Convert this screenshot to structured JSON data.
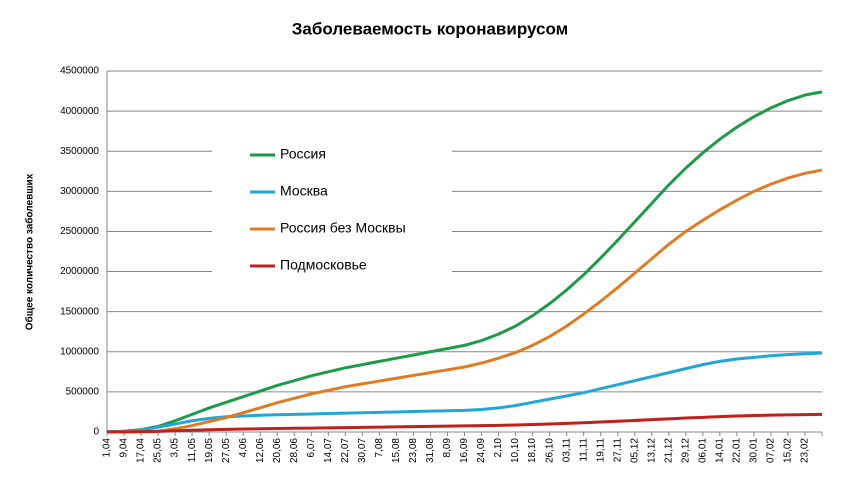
{
  "chart_data": {
    "type": "line",
    "title": "Заболеваемость коронавирусом",
    "y_label": "Общее количество заболевших",
    "categories": [
      "1,04",
      "9,04",
      "17,04",
      "25,05",
      "3,05",
      "11,05",
      "19,05",
      "27,05",
      "4,06",
      "12,06",
      "20,06",
      "28,06",
      "6,07",
      "14,07",
      "22,07",
      "30,07",
      "7,08",
      "15,08",
      "23,08",
      "31,08",
      "8,09",
      "16,09",
      "24,09",
      "2,10",
      "10,10",
      "18,10",
      "26,10",
      "03,11",
      "11,11",
      "19,11",
      "27,11",
      "05,12",
      "13,12",
      "21,12",
      "29,12",
      "06,01",
      "14,01",
      "22,01",
      "30,01",
      "07,02",
      "15,02",
      "23,02",
      null
    ],
    "series": [
      {
        "name": "Россия",
        "color": "#1f9a48",
        "values": [
          2000,
          10000,
          30000,
          70000,
          140000,
          220000,
          300000,
          370000,
          440000,
          510000,
          580000,
          640000,
          700000,
          750000,
          800000,
          840000,
          880000,
          920000,
          960000,
          1000000,
          1040000,
          1080000,
          1140000,
          1220000,
          1320000,
          1450000,
          1600000,
          1770000,
          1960000,
          2170000,
          2390000,
          2620000,
          2850000,
          3080000,
          3290000,
          3480000,
          3650000,
          3800000,
          3930000,
          4040000,
          4130000,
          4200000,
          4240000
        ]
      },
      {
        "name": "Москва",
        "color": "#22a6d6",
        "values": [
          1000,
          8000,
          25000,
          60000,
          100000,
          140000,
          170000,
          190000,
          200000,
          208000,
          215000,
          220000,
          225000,
          230000,
          235000,
          240000,
          245000,
          250000,
          255000,
          260000,
          265000,
          270000,
          280000,
          300000,
          330000,
          370000,
          410000,
          450000,
          490000,
          540000,
          590000,
          640000,
          690000,
          740000,
          790000,
          840000,
          880000,
          910000,
          930000,
          950000,
          965000,
          975000,
          985000
        ]
      },
      {
        "name": "Россия без Москвы",
        "color": "#e07b24",
        "values": [
          1000,
          2000,
          5000,
          10000,
          40000,
          80000,
          130000,
          180000,
          240000,
          302000,
          365000,
          420000,
          475000,
          520000,
          565000,
          600000,
          635000,
          670000,
          705000,
          740000,
          775000,
          810000,
          860000,
          920000,
          990000,
          1080000,
          1190000,
          1320000,
          1470000,
          1630000,
          1800000,
          1980000,
          2160000,
          2340000,
          2500000,
          2640000,
          2770000,
          2890000,
          3000000,
          3090000,
          3165000,
          3225000,
          3265000
        ]
      },
      {
        "name": "Подмосковье",
        "color": "#c0211d",
        "values": [
          0,
          1000,
          3000,
          8000,
          15000,
          22000,
          28000,
          33000,
          37000,
          40000,
          43000,
          46000,
          49000,
          52000,
          55000,
          58000,
          61000,
          64000,
          67000,
          70000,
          73000,
          76000,
          79000,
          83000,
          88000,
          94000,
          100000,
          108000,
          116000,
          125000,
          134000,
          144000,
          154000,
          164000,
          174000,
          183000,
          192000,
          199000,
          205000,
          210000,
          214000,
          217000,
          220000
        ]
      }
    ],
    "ylim": [
      0,
      4500000
    ],
    "yticks": [
      0,
      500000,
      1000000,
      1500000,
      2000000,
      2500000,
      3000000,
      3500000,
      4000000,
      4500000
    ],
    "grid": true
  }
}
